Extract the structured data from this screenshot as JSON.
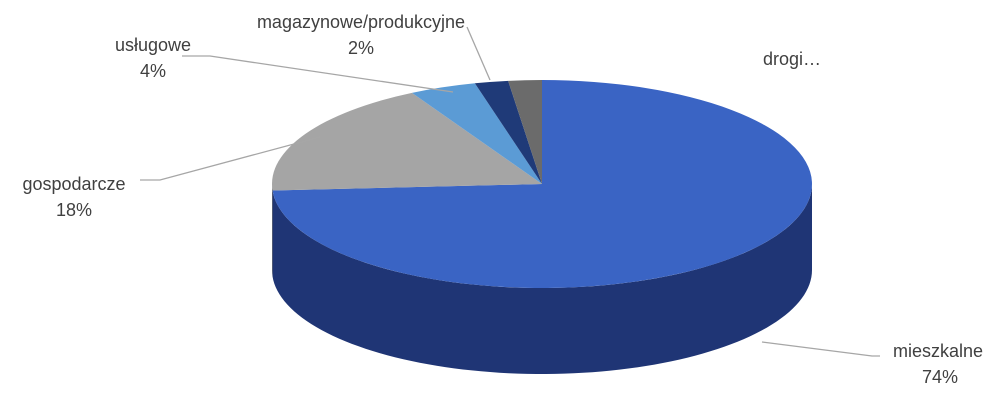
{
  "chart_data": {
    "type": "pie",
    "style": "3d",
    "title": "",
    "slices": [
      {
        "name": "mieszkalne",
        "value": 74,
        "percent_label": "74%",
        "color": "#3a64c4",
        "side_color": "#1f3575"
      },
      {
        "name": "gospodarcze",
        "value": 18,
        "percent_label": "18%",
        "color": "#a5a5a5",
        "side_color": "#6e6e6e"
      },
      {
        "name": "usługowe",
        "value": 4,
        "percent_label": "4%",
        "color": "#5b9bd5",
        "side_color": "#2e5e8c"
      },
      {
        "name": "magazynowe/produkcyjne",
        "value": 2,
        "percent_label": "2%",
        "color": "#1f3a78",
        "side_color": "#10204a"
      },
      {
        "name": "drogi…",
        "value": 2,
        "percent_label": "",
        "color": "#6b6b6b",
        "side_color": "#3f3f3f"
      }
    ]
  }
}
